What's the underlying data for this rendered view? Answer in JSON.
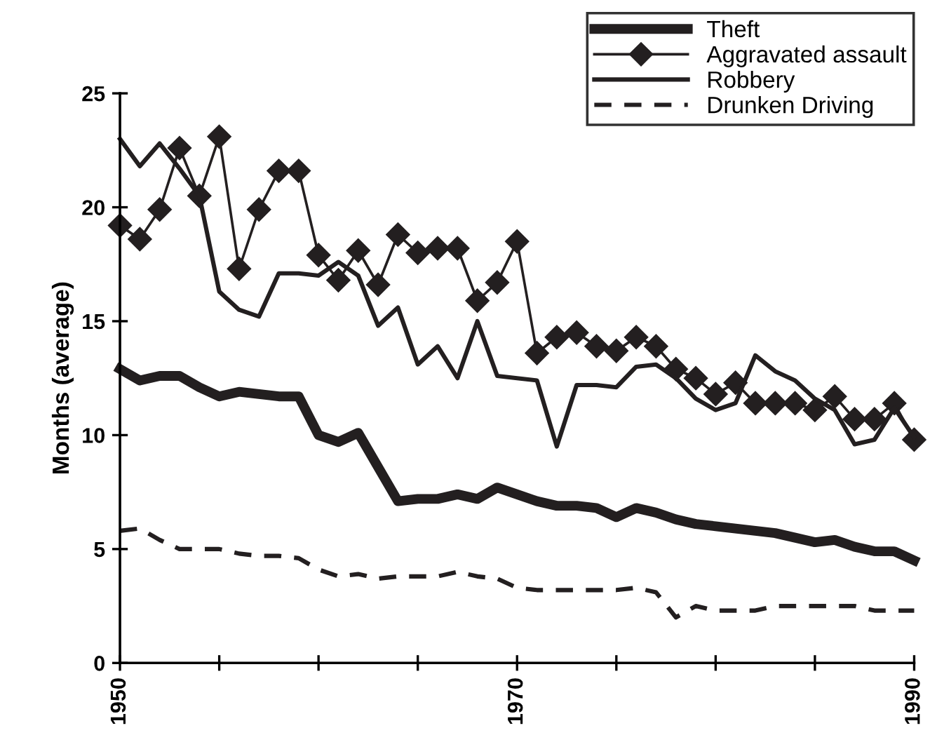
{
  "chart_data": {
    "type": "line",
    "ylabel": "Months (average)",
    "x": [
      1950,
      1951,
      1952,
      1953,
      1954,
      1955,
      1956,
      1957,
      1958,
      1959,
      1960,
      1961,
      1962,
      1963,
      1964,
      1965,
      1966,
      1967,
      1968,
      1969,
      1970,
      1971,
      1972,
      1973,
      1974,
      1975,
      1976,
      1977,
      1978,
      1979,
      1980,
      1981,
      1982,
      1983,
      1984,
      1985,
      1986,
      1987,
      1988,
      1989,
      1990
    ],
    "series": [
      {
        "name": "Theft",
        "color": "#231f20",
        "line_style": "solid",
        "marker": "none",
        "values": [
          12.9,
          12.4,
          12.6,
          12.6,
          12.1,
          11.7,
          11.9,
          11.8,
          11.7,
          11.7,
          10.0,
          9.7,
          10.1,
          8.6,
          7.1,
          7.2,
          7.2,
          7.4,
          7.2,
          7.7,
          7.4,
          7.1,
          6.9,
          6.9,
          6.8,
          6.4,
          6.8,
          6.6,
          6.3,
          6.1,
          6.0,
          5.9,
          5.8,
          5.7,
          5.5,
          5.3,
          5.4,
          5.1,
          4.9,
          4.9,
          4.5
        ]
      },
      {
        "name": "Aggravated assault",
        "color": "#231f20",
        "line_style": "solid",
        "marker": "diamond",
        "values": [
          19.2,
          18.6,
          19.9,
          22.6,
          20.5,
          23.1,
          17.3,
          19.9,
          21.6,
          21.6,
          17.9,
          16.8,
          18.1,
          16.6,
          18.8,
          18.0,
          18.2,
          18.2,
          15.9,
          16.7,
          18.5,
          13.6,
          14.3,
          14.5,
          13.9,
          13.7,
          14.3,
          13.9,
          12.9,
          12.5,
          11.8,
          12.3,
          11.4,
          11.4,
          11.4,
          11.1,
          11.7,
          10.7,
          10.7,
          11.4,
          9.8
        ]
      },
      {
        "name": "Robbery",
        "color": "#231f20",
        "line_style": "solid",
        "marker": "none",
        "values": [
          23.0,
          21.8,
          22.8,
          21.7,
          20.5,
          16.3,
          15.5,
          15.2,
          17.1,
          17.1,
          17.0,
          17.6,
          17.0,
          14.8,
          15.6,
          13.1,
          13.9,
          12.5,
          15.0,
          12.6,
          12.5,
          12.4,
          9.5,
          12.2,
          12.2,
          12.1,
          13.0,
          13.1,
          12.5,
          11.6,
          11.1,
          11.4,
          13.5,
          12.8,
          12.4,
          11.6,
          11.1,
          9.6,
          9.8,
          11.2,
          9.9
        ]
      },
      {
        "name": "Drunken Driving",
        "color": "#231f20",
        "line_style": "dashed",
        "marker": "none",
        "values": [
          5.8,
          5.9,
          5.4,
          5.0,
          5.0,
          5.0,
          4.8,
          4.7,
          4.7,
          4.6,
          4.1,
          3.8,
          3.9,
          3.7,
          3.8,
          3.8,
          3.8,
          4.0,
          3.8,
          3.7,
          3.3,
          3.2,
          3.2,
          3.2,
          3.2,
          3.2,
          3.3,
          3.1,
          2.0,
          2.5,
          2.3,
          2.3,
          2.3,
          2.5,
          2.5,
          2.5,
          2.5,
          2.5,
          2.3,
          2.3,
          2.3
        ]
      }
    ],
    "xlim": [
      1950,
      1990
    ],
    "xticks": [
      1950,
      {
        "value": 1955,
        "label": null
      },
      {
        "value": 1960,
        "label": null
      },
      {
        "value": 1965,
        "label": null
      },
      1970,
      {
        "value": 1975,
        "label": null
      },
      {
        "value": 1980,
        "label": null
      },
      {
        "value": 1985,
        "label": null
      },
      1990
    ],
    "ylim": [
      0,
      25
    ],
    "yticks": [
      0,
      5,
      10,
      15,
      20,
      25
    ],
    "grid": false,
    "legend": "top right"
  }
}
